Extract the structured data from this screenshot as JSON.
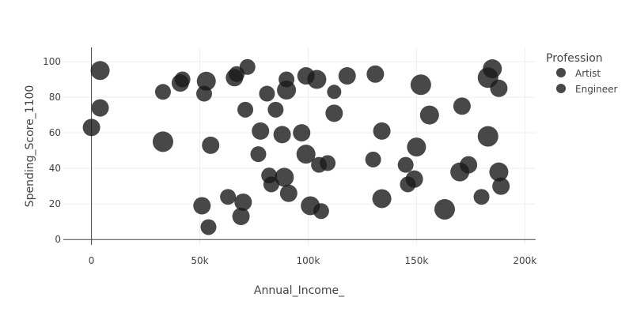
{
  "chart_data": {
    "type": "scatter",
    "xlabel": "Annual_Income_",
    "ylabel": "Spending_Score_1100",
    "xlim": [
      -13000,
      205000
    ],
    "ylim": [
      -3,
      108
    ],
    "x_ticks": [
      0,
      50000,
      100000,
      150000,
      200000
    ],
    "x_tick_labels": [
      "0",
      "50k",
      "100k",
      "150k",
      "200k"
    ],
    "y_ticks": [
      0,
      20,
      40,
      60,
      80,
      100
    ],
    "y_tick_labels": [
      "0",
      "20",
      "40",
      "60",
      "80",
      "100"
    ],
    "grid": true,
    "legend": {
      "title": "Profession",
      "position": "top-right"
    },
    "colors": {
      "marker": "#1a1a1a",
      "grid": "#eeeeee",
      "axis": "#444444"
    },
    "series": [
      {
        "name": "Artist",
        "points": [
          {
            "x": 0,
            "y": 63,
            "s": 11
          },
          {
            "x": 4000,
            "y": 95,
            "s": 12
          },
          {
            "x": 4000,
            "y": 74,
            "s": 11
          },
          {
            "x": 33000,
            "y": 55,
            "s": 13
          },
          {
            "x": 33000,
            "y": 83,
            "s": 10
          },
          {
            "x": 41000,
            "y": 88,
            "s": 11
          },
          {
            "x": 42000,
            "y": 90,
            "s": 10
          },
          {
            "x": 52000,
            "y": 82,
            "s": 10
          },
          {
            "x": 53000,
            "y": 89,
            "s": 12
          },
          {
            "x": 55000,
            "y": 53,
            "s": 11
          },
          {
            "x": 51000,
            "y": 19,
            "s": 11
          },
          {
            "x": 54000,
            "y": 7,
            "s": 10
          },
          {
            "x": 63000,
            "y": 24,
            "s": 10
          },
          {
            "x": 66000,
            "y": 91,
            "s": 11
          },
          {
            "x": 67000,
            "y": 93,
            "s": 10
          },
          {
            "x": 72000,
            "y": 97,
            "s": 10
          },
          {
            "x": 71000,
            "y": 73,
            "s": 10
          },
          {
            "x": 70000,
            "y": 21,
            "s": 11
          },
          {
            "x": 69000,
            "y": 13,
            "s": 11
          },
          {
            "x": 77000,
            "y": 48,
            "s": 10
          },
          {
            "x": 78000,
            "y": 61,
            "s": 11
          },
          {
            "x": 81000,
            "y": 82,
            "s": 10
          },
          {
            "x": 85000,
            "y": 73,
            "s": 10
          },
          {
            "x": 82000,
            "y": 36,
            "s": 10
          },
          {
            "x": 83000,
            "y": 31,
            "s": 10
          },
          {
            "x": 88000,
            "y": 59,
            "s": 11
          },
          {
            "x": 90000,
            "y": 90,
            "s": 10
          },
          {
            "x": 90000,
            "y": 84,
            "s": 12
          },
          {
            "x": 89000,
            "y": 35,
            "s": 12
          },
          {
            "x": 91000,
            "y": 26,
            "s": 11
          },
          {
            "x": 97000,
            "y": 60,
            "s": 11
          },
          {
            "x": 99000,
            "y": 92,
            "s": 11
          },
          {
            "x": 99000,
            "y": 48,
            "s": 12
          }
        ]
      },
      {
        "name": "Engineer",
        "points": [
          {
            "x": 104000,
            "y": 90,
            "s": 12
          },
          {
            "x": 105000,
            "y": 42,
            "s": 10
          },
          {
            "x": 101000,
            "y": 19,
            "s": 12
          },
          {
            "x": 106000,
            "y": 16,
            "s": 10
          },
          {
            "x": 109000,
            "y": 43,
            "s": 10
          },
          {
            "x": 112000,
            "y": 83,
            "s": 9
          },
          {
            "x": 112000,
            "y": 71,
            "s": 11
          },
          {
            "x": 118000,
            "y": 92,
            "s": 11
          },
          {
            "x": 131000,
            "y": 93,
            "s": 11
          },
          {
            "x": 130000,
            "y": 45,
            "s": 10
          },
          {
            "x": 134000,
            "y": 61,
            "s": 11
          },
          {
            "x": 134000,
            "y": 23,
            "s": 12
          },
          {
            "x": 145000,
            "y": 42,
            "s": 10
          },
          {
            "x": 146000,
            "y": 31,
            "s": 10
          },
          {
            "x": 149000,
            "y": 34,
            "s": 11
          },
          {
            "x": 150000,
            "y": 52,
            "s": 12
          },
          {
            "x": 152000,
            "y": 87,
            "s": 13
          },
          {
            "x": 156000,
            "y": 70,
            "s": 12
          },
          {
            "x": 163000,
            "y": 17,
            "s": 13
          },
          {
            "x": 171000,
            "y": 75,
            "s": 11
          },
          {
            "x": 170000,
            "y": 38,
            "s": 12
          },
          {
            "x": 174000,
            "y": 42,
            "s": 11
          },
          {
            "x": 180000,
            "y": 24,
            "s": 10
          },
          {
            "x": 183000,
            "y": 91,
            "s": 13
          },
          {
            "x": 185000,
            "y": 96,
            "s": 12
          },
          {
            "x": 183000,
            "y": 58,
            "s": 13
          },
          {
            "x": 188000,
            "y": 85,
            "s": 11
          },
          {
            "x": 188000,
            "y": 38,
            "s": 12
          },
          {
            "x": 189000,
            "y": 30,
            "s": 11
          }
        ]
      }
    ]
  }
}
